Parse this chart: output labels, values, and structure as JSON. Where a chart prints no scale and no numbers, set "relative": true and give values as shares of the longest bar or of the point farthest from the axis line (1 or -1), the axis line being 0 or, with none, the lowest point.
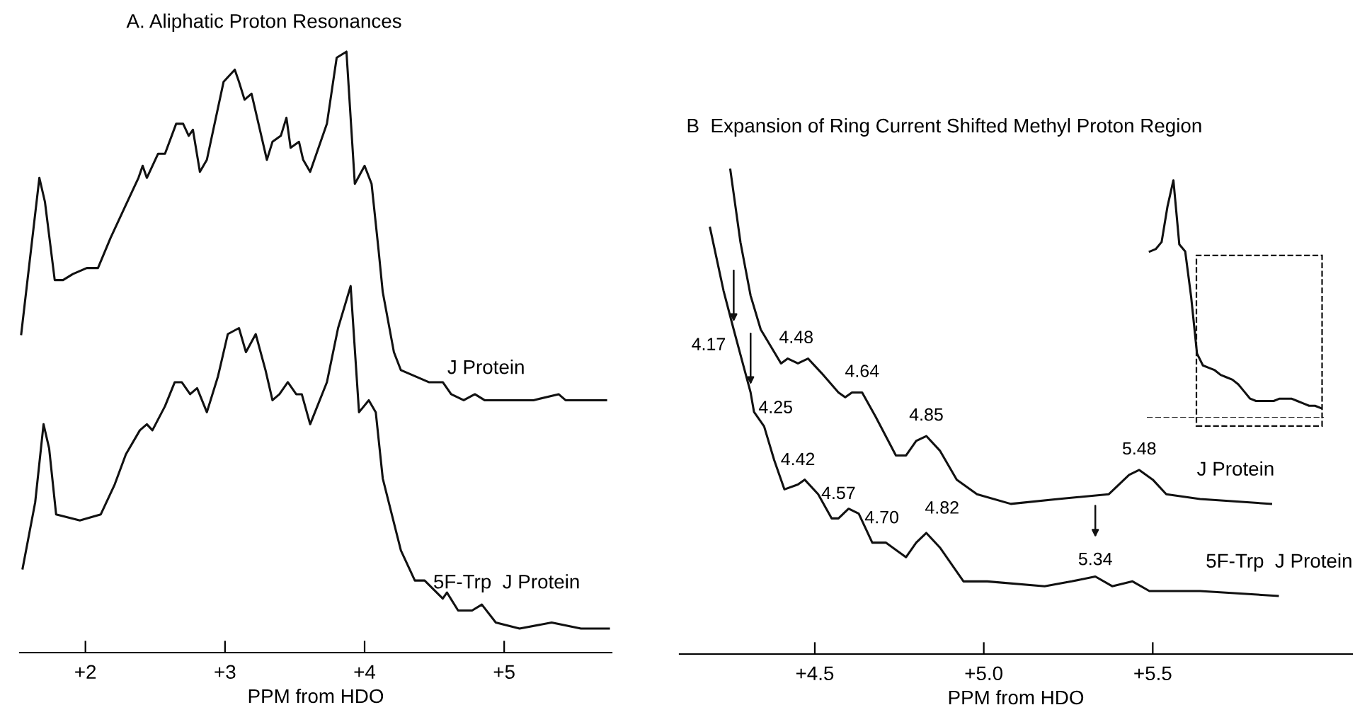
{
  "chart_data": [
    {
      "type": "line",
      "title": "A. Aliphatic Proton Resonances",
      "xlabel": "PPM from HDO",
      "relative": true,
      "legend": false,
      "grid": false,
      "marker": "none",
      "line_style": "solid",
      "xlim": [
        1.53,
        5.77
      ],
      "xticks": [
        {
          "value": 2,
          "label": "+2"
        },
        {
          "value": 3,
          "label": "+3"
        },
        {
          "value": 4,
          "label": "+4"
        },
        {
          "value": 5,
          "label": "+5"
        }
      ],
      "series": [
        {
          "name": "J Protein",
          "color": "#111111",
          "x": [
            1.54,
            1.67,
            1.71,
            1.78,
            1.84,
            1.91,
            2.01,
            2.09,
            2.18,
            2.28,
            2.38,
            2.41,
            2.44,
            2.52,
            2.57,
            2.65,
            2.7,
            2.74,
            2.77,
            2.82,
            2.87,
            2.99,
            3.07,
            3.1,
            3.14,
            3.19,
            3.24,
            3.3,
            3.34,
            3.4,
            3.44,
            3.47,
            3.53,
            3.56,
            3.61,
            3.73,
            3.8,
            3.87,
            3.93,
            4.0,
            4.05,
            4.1,
            4.13,
            4.21,
            4.26,
            4.36,
            4.46,
            4.56,
            4.62,
            4.71,
            4.79,
            4.86,
            5.01,
            5.21,
            5.39,
            5.44,
            5.73
          ],
          "values": [
            0.53,
            0.79,
            0.75,
            0.62,
            0.62,
            0.63,
            0.64,
            0.64,
            0.69,
            0.74,
            0.79,
            0.81,
            0.79,
            0.83,
            0.83,
            0.88,
            0.88,
            0.86,
            0.87,
            0.8,
            0.82,
            0.95,
            0.97,
            0.95,
            0.92,
            0.93,
            0.88,
            0.82,
            0.85,
            0.86,
            0.89,
            0.84,
            0.85,
            0.82,
            0.8,
            0.88,
            0.99,
            1.0,
            0.78,
            0.81,
            0.78,
            0.67,
            0.6,
            0.5,
            0.47,
            0.46,
            0.45,
            0.45,
            0.43,
            0.42,
            0.43,
            0.42,
            0.42,
            0.42,
            0.43,
            0.42,
            0.42
          ]
        },
        {
          "name": "5F-Trp  J Protein",
          "color": "#111111",
          "x": [
            1.55,
            1.64,
            1.7,
            1.74,
            1.79,
            1.96,
            2.11,
            2.21,
            2.29,
            2.39,
            2.44,
            2.48,
            2.57,
            2.64,
            2.69,
            2.75,
            2.8,
            2.87,
            2.95,
            3.02,
            3.1,
            3.15,
            3.22,
            3.29,
            3.34,
            3.39,
            3.45,
            3.51,
            3.55,
            3.61,
            3.73,
            3.81,
            3.9,
            3.96,
            4.03,
            4.08,
            4.13,
            4.26,
            4.36,
            4.43,
            4.56,
            4.59,
            4.67,
            4.77,
            4.84,
            4.94,
            5.11,
            5.34,
            5.55,
            5.75
          ],
          "values": [
            0.14,
            0.25,
            0.38,
            0.34,
            0.23,
            0.22,
            0.23,
            0.28,
            0.33,
            0.37,
            0.38,
            0.37,
            0.41,
            0.45,
            0.45,
            0.43,
            0.44,
            0.4,
            0.46,
            0.53,
            0.54,
            0.5,
            0.53,
            0.47,
            0.42,
            0.43,
            0.45,
            0.43,
            0.43,
            0.38,
            0.45,
            0.54,
            0.61,
            0.4,
            0.42,
            0.4,
            0.29,
            0.17,
            0.12,
            0.12,
            0.09,
            0.1,
            0.07,
            0.07,
            0.08,
            0.05,
            0.04,
            0.05,
            0.04,
            0.04
          ]
        }
      ]
    },
    {
      "type": "line",
      "title": "B  Expansion of Ring Current Shifted Methyl Proton Region",
      "xlabel": "PPM from HDO",
      "relative": true,
      "legend": false,
      "grid": false,
      "marker": "none",
      "line_style": "solid",
      "xlim": [
        4.1,
        6.09
      ],
      "xticks": [
        {
          "value": 4.5,
          "label": "+4.5"
        },
        {
          "value": 5.0,
          "label": "+5.0"
        },
        {
          "value": 5.5,
          "label": "+5.5"
        }
      ],
      "series": [
        {
          "name": "J Protein",
          "color": "#111111",
          "x": [
            4.25,
            4.28,
            4.31,
            4.34,
            4.4,
            4.42,
            4.45,
            4.48,
            4.52,
            4.57,
            4.59,
            4.61,
            4.64,
            4.68,
            4.74,
            4.77,
            4.8,
            4.83,
            4.87,
            4.92,
            4.98,
            5.08,
            5.22,
            5.37,
            5.43,
            5.46,
            5.5,
            5.54,
            5.64,
            5.85
          ],
          "values": [
            1.0,
            0.85,
            0.74,
            0.67,
            0.6,
            0.61,
            0.6,
            0.61,
            0.58,
            0.54,
            0.53,
            0.54,
            0.54,
            0.49,
            0.41,
            0.41,
            0.44,
            0.45,
            0.42,
            0.36,
            0.33,
            0.31,
            0.32,
            0.33,
            0.37,
            0.38,
            0.36,
            0.33,
            0.32,
            0.31
          ]
        },
        {
          "name": "5F-Trp  J Protein",
          "color": "#111111",
          "x": [
            4.19,
            4.23,
            4.26,
            4.31,
            4.32,
            4.35,
            4.38,
            4.41,
            4.45,
            4.47,
            4.51,
            4.55,
            4.57,
            4.6,
            4.63,
            4.67,
            4.71,
            4.77,
            4.8,
            4.83,
            4.87,
            4.94,
            5.01,
            5.18,
            5.26,
            5.33,
            5.38,
            5.44,
            5.49,
            5.64,
            5.87
          ],
          "values": [
            0.88,
            0.75,
            0.67,
            0.54,
            0.5,
            0.47,
            0.4,
            0.34,
            0.35,
            0.36,
            0.33,
            0.28,
            0.28,
            0.3,
            0.29,
            0.23,
            0.23,
            0.2,
            0.23,
            0.25,
            0.22,
            0.15,
            0.15,
            0.14,
            0.15,
            0.16,
            0.14,
            0.15,
            0.13,
            0.13,
            0.12
          ]
        }
      ],
      "annotations": [
        {
          "text": "4.17",
          "x": 4.26,
          "y": 0.67
        },
        {
          "text": "4.48",
          "x": 4.48,
          "y": 0.61
        },
        {
          "text": "4.64",
          "x": 4.64,
          "y": 0.54
        },
        {
          "text": "4.85",
          "x": 4.83,
          "y": 0.45
        },
        {
          "text": "5.48",
          "x": 5.46,
          "y": 0.38
        },
        {
          "text": "4.25",
          "x": 4.31,
          "y": 0.54
        },
        {
          "text": "4.42",
          "x": 4.45,
          "y": 0.35
        },
        {
          "text": "4.57",
          "x": 4.57,
          "y": 0.28
        },
        {
          "text": "4.70",
          "x": 4.71,
          "y": 0.23
        },
        {
          "text": "4.82",
          "x": 4.83,
          "y": 0.25
        },
        {
          "text": "5.34",
          "x": 5.33,
          "y": 0.16
        }
      ]
    },
    {
      "type": "line",
      "relative": true,
      "legend": false,
      "grid": false,
      "marker": "none",
      "line_style": "solid",
      "categories": [
        null,
        null,
        null,
        null,
        null,
        null,
        null,
        null,
        null,
        null,
        null,
        null,
        null,
        null,
        null,
        null,
        null,
        null,
        null,
        null,
        null,
        null,
        null,
        null,
        null,
        null,
        null,
        null,
        null,
        null
      ],
      "ref_lines": [
        {
          "axis": "y",
          "value": 0,
          "line_style": "dashed",
          "color": "#111111"
        }
      ],
      "series": [
        {
          "color": "#111111",
          "values": [
            0.7,
            0.71,
            0.74,
            0.89,
            1.0,
            0.73,
            0.7,
            0.51,
            0.27,
            0.22,
            0.21,
            0.2,
            0.18,
            0.17,
            0.16,
            0.14,
            0.11,
            0.08,
            0.07,
            0.07,
            0.07,
            0.07,
            0.08,
            0.08,
            0.08,
            0.07,
            0.06,
            0.05,
            0.05,
            0.04
          ]
        }
      ]
    }
  ]
}
